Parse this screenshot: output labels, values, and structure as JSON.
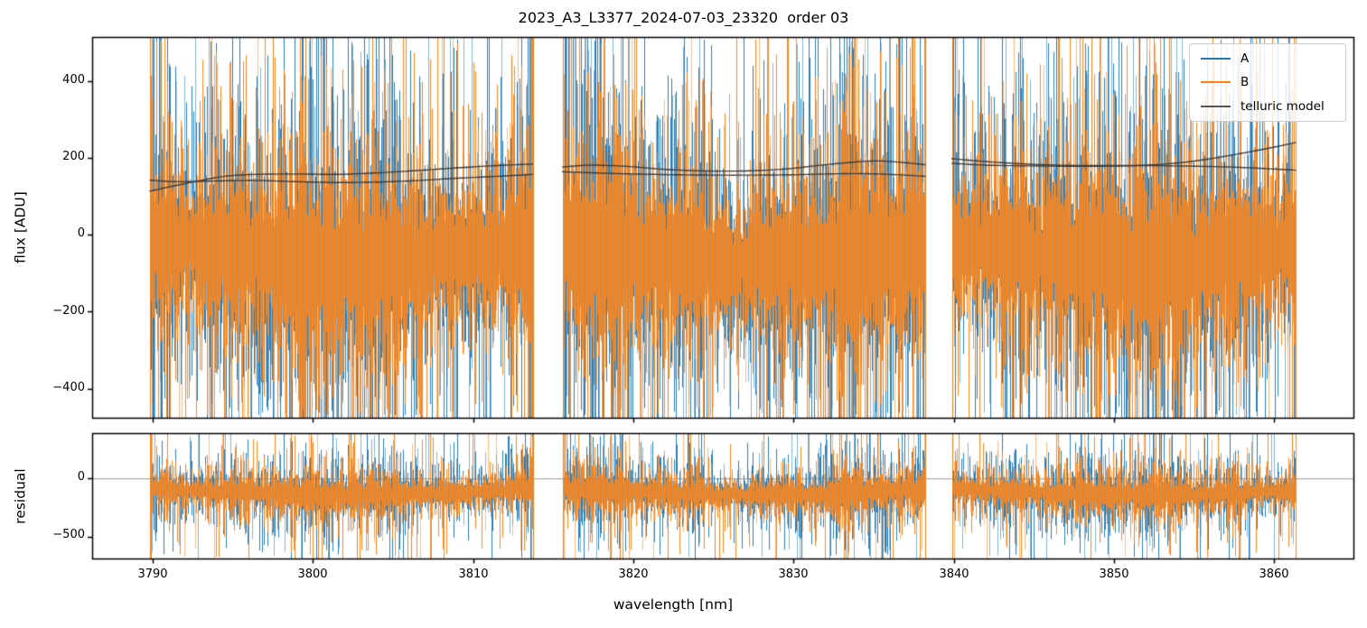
{
  "chart_data": {
    "type": "line",
    "title": "2023_A3_L3377_2024-07-03_23320  order 03",
    "xlabel": "wavelength [nm]",
    "xlim": [
      3786.3,
      3864.9
    ],
    "xticks": [
      3790,
      3800,
      3810,
      3820,
      3830,
      3840,
      3850,
      3860
    ],
    "xtick_labels": [
      "3790",
      "3800",
      "3810",
      "3820",
      "3830",
      "3840",
      "3850",
      "3860"
    ],
    "segments_nm": [
      [
        3789.8,
        3813.75
      ],
      [
        3815.55,
        3838.25
      ],
      [
        3839.85,
        3861.35
      ]
    ],
    "legend": {
      "position": "upper right",
      "entries": [
        "A",
        "B",
        "telluric model"
      ]
    },
    "grid": false,
    "panels": [
      {
        "name": "flux",
        "ylabel": "flux [ADU]",
        "ylim": [
          -476,
          512
        ],
        "yticks": [
          400,
          200,
          0,
          -200,
          -400
        ],
        "ytick_labels": [
          "400",
          "200",
          "0",
          "−200",
          "−400"
        ],
        "noise": {
          "description": "dense noisy spectra clipped at panel edges",
          "center_adu": -40,
          "core_halfwidth_adu": 300,
          "spike_extent_adu": 520
        }
      },
      {
        "name": "residual",
        "ylabel": "residual",
        "ylim": [
          -689,
          382
        ],
        "yticks": [
          0,
          -500
        ],
        "ytick_labels": [
          "0",
          "−500"
        ],
        "zero_line": true,
        "noise": {
          "description": "residual noise band clipped at panel edges",
          "center_adu": -112,
          "core_halfwidth_adu": 300,
          "spike_extent_adu": 560
        }
      }
    ],
    "series": [
      {
        "name": "A",
        "color": "#1f77b4",
        "kind": "noisy spectrum"
      },
      {
        "name": "B",
        "color": "#ff7f0e",
        "kind": "noisy spectrum"
      },
      {
        "name": "telluric model",
        "color": "#3c3c3c",
        "kind": "smooth model, two curves per segment",
        "curves": [
          [
            [
              [
                3789.8,
                113
              ],
              [
                3791.2,
                126
              ],
              [
                3792.6,
                138
              ],
              [
                3794.5,
                152
              ],
              [
                3796.5,
                157
              ],
              [
                3799,
                158
              ],
              [
                3801.5,
                157
              ],
              [
                3804,
                161
              ],
              [
                3806.5,
                167
              ],
              [
                3809,
                174
              ],
              [
                3811.5,
                180
              ],
              [
                3813.75,
                184
              ]
            ],
            [
              [
                3789.8,
                142
              ],
              [
                3791.5,
                138
              ],
              [
                3794,
                140
              ],
              [
                3796.5,
                141
              ],
              [
                3799,
                138
              ],
              [
                3801.5,
                136
              ],
              [
                3804,
                137
              ],
              [
                3806.5,
                141
              ],
              [
                3809,
                147
              ],
              [
                3811.5,
                152
              ],
              [
                3813.75,
                157
              ]
            ]
          ],
          [
            [
              [
                3815.55,
                176
              ],
              [
                3817.3,
                181
              ],
              [
                3819.5,
                178
              ],
              [
                3822,
                170
              ],
              [
                3824.5,
                166
              ],
              [
                3827,
                166
              ],
              [
                3829.5,
                171
              ],
              [
                3831.5,
                180
              ],
              [
                3833.5,
                188
              ],
              [
                3835.2,
                192
              ],
              [
                3836.8,
                188
              ],
              [
                3838.25,
                182
              ]
            ],
            [
              [
                3815.55,
                164
              ],
              [
                3817.5,
                161
              ],
              [
                3820,
                158
              ],
              [
                3822.5,
                156
              ],
              [
                3825,
                155
              ],
              [
                3827.5,
                155
              ],
              [
                3830,
                156
              ],
              [
                3832,
                158
              ],
              [
                3834,
                159
              ],
              [
                3836,
                157
              ],
              [
                3838.25,
                152
              ]
            ]
          ],
          [
            [
              [
                3839.85,
                186
              ],
              [
                3842,
                181
              ],
              [
                3845,
                179
              ],
              [
                3848,
                178
              ],
              [
                3850.5,
                179
              ],
              [
                3852.5,
                182
              ],
              [
                3854.5,
                189
              ],
              [
                3856.5,
                201
              ],
              [
                3858.5,
                216
              ],
              [
                3860,
                228
              ],
              [
                3861.35,
                240
              ]
            ],
            [
              [
                3839.85,
                198
              ],
              [
                3841.5,
                192
              ],
              [
                3844,
                185
              ],
              [
                3846.5,
                181
              ],
              [
                3849,
                180
              ],
              [
                3851.5,
                180
              ],
              [
                3854,
                179
              ],
              [
                3856.5,
                177
              ],
              [
                3858.5,
                174
              ],
              [
                3861.35,
                168
              ]
            ]
          ]
        ]
      }
    ],
    "colors": {
      "A": "#1f77b4",
      "B": "#ff7f0e",
      "model": "#3c3c3c",
      "zero_line": "#999999",
      "axis": "#000000",
      "background": "#ffffff"
    }
  }
}
